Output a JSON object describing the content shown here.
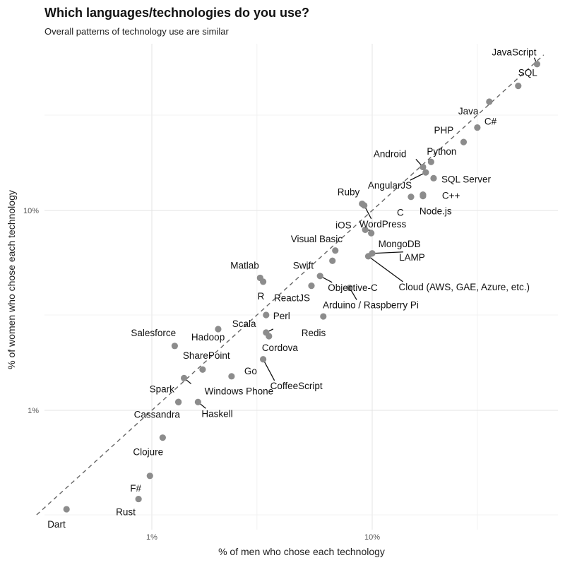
{
  "chart_data": {
    "type": "scatter",
    "title": "Which languages/technologies do you use?",
    "subtitle": "Overall patterns of technology use are similar",
    "xlabel": "% of men who chose each technology",
    "ylabel": "% of women who chose each technology",
    "x_scale": "log",
    "y_scale": "log",
    "xlim": [
      0.3,
      60
    ],
    "ylim": [
      0.3,
      60
    ],
    "x_ticks": [
      {
        "value": 1,
        "label": "1%"
      },
      {
        "value": 10,
        "label": "10%"
      }
    ],
    "y_ticks": [
      {
        "value": 1,
        "label": "1%"
      },
      {
        "value": 10,
        "label": "10%"
      }
    ],
    "x_minor_gridlines": [
      3,
      30
    ],
    "y_minor_gridlines": [
      0.3,
      3,
      30
    ],
    "reference_line": {
      "style": "dashed",
      "slope": 1
    },
    "grid": true,
    "point_color": "#8c8c8c",
    "points": [
      {
        "label": "JavaScript",
        "x": 56,
        "y": 54
      },
      {
        "label": "SQL",
        "x": 46,
        "y": 42
      },
      {
        "label": "Java",
        "x": 34,
        "y": 35
      },
      {
        "label": "C#",
        "x": 30,
        "y": 26
      },
      {
        "label": "PHP",
        "x": 26,
        "y": 22
      },
      {
        "label": "Python",
        "x": 18.5,
        "y": 17.5
      },
      {
        "label": "Android",
        "x": 17,
        "y": 16.5
      },
      {
        "label": "SQL Server",
        "x": 19,
        "y": 14.5
      },
      {
        "label": "AngularJS",
        "x": 17.5,
        "y": 15.5
      },
      {
        "label": "C++",
        "x": 17,
        "y": 11.8
      },
      {
        "label": "C",
        "x": 15,
        "y": 11.7
      },
      {
        "label": "Node.js",
        "x": 17,
        "y": 12
      },
      {
        "label": "Ruby",
        "x": 9,
        "y": 10.8
      },
      {
        "label": "WordPress",
        "x": 9.2,
        "y": 10.6
      },
      {
        "label": "iOS",
        "x": 9.3,
        "y": 8.0
      },
      {
        "label": "MongoDB",
        "x": 9.9,
        "y": 7.7
      },
      {
        "label": "Visual Basic",
        "x": 6.8,
        "y": 6.3
      },
      {
        "label": "LAMP",
        "x": 10,
        "y": 6.1
      },
      {
        "label": "Cloud (AWS, GAE, Azure, etc.)",
        "x": 9.6,
        "y": 5.9
      },
      {
        "label": "Swift",
        "x": 6.6,
        "y": 5.6
      },
      {
        "label": "Objective-C",
        "x": 5.8,
        "y": 4.7
      },
      {
        "label": "Matlab",
        "x": 3.1,
        "y": 4.6
      },
      {
        "label": "R",
        "x": 3.2,
        "y": 4.4
      },
      {
        "label": "ReactJS",
        "x": 5.3,
        "y": 4.2
      },
      {
        "label": "Arduino / Raspberry Pi",
        "x": 7.9,
        "y": 4.1
      },
      {
        "label": "Perl",
        "x": 3.3,
        "y": 3.0
      },
      {
        "label": "Redis",
        "x": 6,
        "y": 2.95
      },
      {
        "label": "Hadoop",
        "x": 2,
        "y": 2.55
      },
      {
        "label": "Scala",
        "x": 3.3,
        "y": 2.45
      },
      {
        "label": "Cordova",
        "x": 3.4,
        "y": 2.35
      },
      {
        "label": "Salesforce",
        "x": 1.27,
        "y": 2.1
      },
      {
        "label": "CoffeeScript",
        "x": 3.2,
        "y": 1.8
      },
      {
        "label": "SharePoint",
        "x": 1.7,
        "y": 1.6
      },
      {
        "label": "Go",
        "x": 2.3,
        "y": 1.48
      },
      {
        "label": "Spark",
        "x": 1.4,
        "y": 1.45
      },
      {
        "label": "Windows Phone",
        "x": 1.32,
        "y": 1.1
      },
      {
        "label": "Haskell",
        "x": 1.62,
        "y": 1.1
      },
      {
        "label": "Cassandra",
        "x": 1.32,
        "y": 1.1
      },
      {
        "label": "Clojure",
        "x": 1.12,
        "y": 0.73
      },
      {
        "label": "F#",
        "x": 0.98,
        "y": 0.47
      },
      {
        "label": "Rust",
        "x": 0.87,
        "y": 0.36
      },
      {
        "label": "Dart",
        "x": 0.41,
        "y": 0.32
      }
    ]
  }
}
